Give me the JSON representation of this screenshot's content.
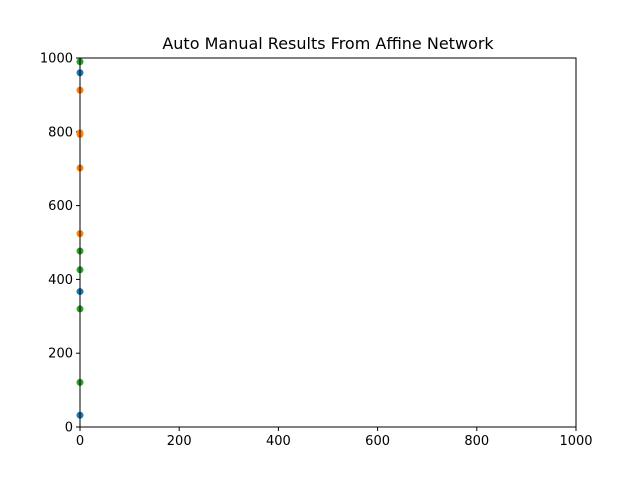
{
  "chart_data": {
    "type": "scatter",
    "title": "Auto Manual Results From Affine Network",
    "xlabel": "",
    "ylabel": "",
    "xlim": [
      0,
      1000
    ],
    "ylim": [
      0,
      1000
    ],
    "xticks": [
      0,
      200,
      400,
      600,
      800,
      1000
    ],
    "yticks": [
      0,
      200,
      400,
      600,
      800,
      1000
    ],
    "grid": false,
    "legend": "none",
    "series": [
      {
        "color": "#1f77b4",
        "points": [
          {
            "x": 0,
            "y": 960
          },
          {
            "x": 0,
            "y": 367
          },
          {
            "x": 0,
            "y": 32
          }
        ]
      },
      {
        "color": "#ff7f0e",
        "points": [
          {
            "x": 0,
            "y": 913
          },
          {
            "x": 0,
            "y": 797
          },
          {
            "x": 0,
            "y": 793
          },
          {
            "x": 0,
            "y": 702
          },
          {
            "x": 0,
            "y": 524
          }
        ]
      },
      {
        "color": "#2ca02c",
        "points": [
          {
            "x": 0,
            "y": 990
          },
          {
            "x": 0,
            "y": 477
          },
          {
            "x": 0,
            "y": 426
          },
          {
            "x": 0,
            "y": 320
          },
          {
            "x": 0,
            "y": 121
          }
        ]
      }
    ]
  }
}
